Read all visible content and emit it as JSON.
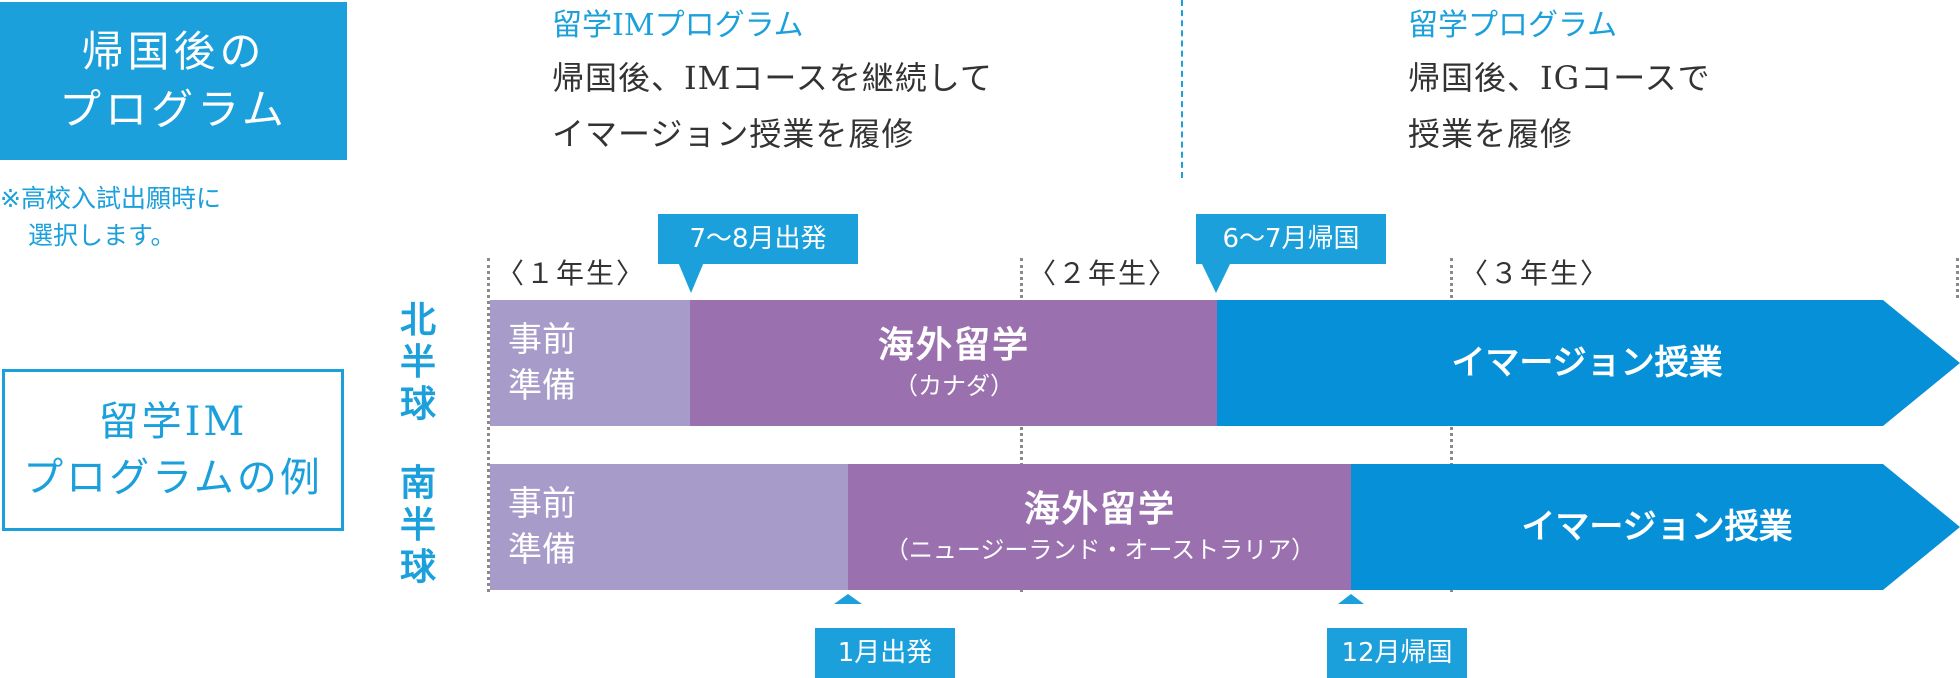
{
  "left": {
    "filled_box": {
      "line1": "帰国後の",
      "line2": "プログラム"
    },
    "note": {
      "line1": "※高校入試出願時に",
      "line2": "選択します。"
    },
    "outline_box": {
      "line1": "留学IM",
      "line2": "プログラムの例"
    }
  },
  "programs": [
    {
      "title": "留学IMプログラム",
      "desc1": "帰国後、IMコースを継続して",
      "desc2": "イマージョン授業を履修"
    },
    {
      "title": "留学プログラム",
      "desc1": "帰国後、IGコースで",
      "desc2": "授業を履修"
    }
  ],
  "grades": [
    "〈１年生〉",
    "〈２年生〉",
    "〈３年生〉"
  ],
  "callouts": {
    "north_depart": "7〜8月出発",
    "north_return": "6〜7月帰国",
    "south_depart": "1月出発",
    "south_return": "12月帰国"
  },
  "north": {
    "label": [
      "北",
      "半",
      "球"
    ],
    "prep": [
      "事前",
      "準備"
    ],
    "abroad_title": "海外留学",
    "abroad_sub": "（カナダ）",
    "immersion": "イマージョン授業"
  },
  "south": {
    "label": [
      "南",
      "半",
      "球"
    ],
    "prep": [
      "事前",
      "準備"
    ],
    "abroad_title": "海外留学",
    "abroad_sub": "（ニュージーランド・オーストラリア）",
    "immersion": "イマージョン授業"
  },
  "colors": {
    "accent": "#1ba0dc",
    "immersion": "#0590d8",
    "prep": "#a79bc9",
    "abroad": "#9a70ae"
  }
}
